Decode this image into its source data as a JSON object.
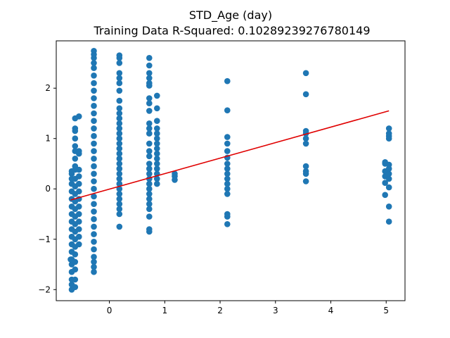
{
  "chart_data": {
    "type": "scatter",
    "title": "STD_Age (day)",
    "subtitle": "Training Data R-Squared: 0.10289239276780149",
    "xlabel": "",
    "ylabel": "",
    "xlim": [
      -0.96,
      5.34
    ],
    "ylim": [
      -2.22,
      2.94
    ],
    "xticks": [
      0,
      1,
      2,
      3,
      4,
      5
    ],
    "yticks": [
      -2,
      -1,
      0,
      1,
      2
    ],
    "grid": false,
    "colors": {
      "points": "#1f77b4",
      "fit_line": "#e00000"
    },
    "series": [
      {
        "kind": "points",
        "points": [
          [
            -0.68,
            -2.0
          ],
          [
            -0.68,
            -1.9
          ],
          [
            -0.68,
            -1.8
          ],
          [
            -0.68,
            -1.65
          ],
          [
            -0.68,
            -1.5
          ],
          [
            -0.68,
            -1.4
          ],
          [
            -0.68,
            -1.25
          ],
          [
            -0.68,
            -1.1
          ],
          [
            -0.68,
            -0.95
          ],
          [
            -0.68,
            -0.8
          ],
          [
            -0.68,
            -0.65
          ],
          [
            -0.68,
            -0.5
          ],
          [
            -0.68,
            -0.35
          ],
          [
            -0.68,
            -0.2
          ],
          [
            -0.68,
            -0.05
          ],
          [
            -0.68,
            0.1
          ],
          [
            -0.68,
            0.2
          ],
          [
            -0.68,
            0.3
          ],
          [
            -0.68,
            0.35
          ],
          [
            -0.7,
            -1.4
          ],
          [
            -0.62,
            -1.95
          ],
          [
            -0.62,
            -1.8
          ],
          [
            -0.62,
            -1.6
          ],
          [
            -0.62,
            -1.45
          ],
          [
            -0.62,
            -1.3
          ],
          [
            -0.62,
            -1.15
          ],
          [
            -0.62,
            -1.0
          ],
          [
            -0.62,
            -0.85
          ],
          [
            -0.62,
            -0.7
          ],
          [
            -0.62,
            -0.55
          ],
          [
            -0.62,
            -0.4
          ],
          [
            -0.62,
            -0.25
          ],
          [
            -0.62,
            -0.1
          ],
          [
            -0.62,
            0.05
          ],
          [
            -0.62,
            0.2
          ],
          [
            -0.62,
            0.38
          ],
          [
            -0.62,
            0.45
          ],
          [
            -0.62,
            0.6
          ],
          [
            -0.62,
            0.75
          ],
          [
            -0.62,
            0.85
          ],
          [
            -0.62,
            1.0
          ],
          [
            -0.62,
            1.15
          ],
          [
            -0.62,
            1.2
          ],
          [
            -0.62,
            1.4
          ],
          [
            -0.55,
            -1.1
          ],
          [
            -0.55,
            -0.95
          ],
          [
            -0.55,
            -0.8
          ],
          [
            -0.55,
            -0.65
          ],
          [
            -0.55,
            -0.5
          ],
          [
            -0.55,
            -0.35
          ],
          [
            -0.55,
            -0.2
          ],
          [
            -0.55,
            -0.05
          ],
          [
            -0.55,
            0.1
          ],
          [
            -0.55,
            0.25
          ],
          [
            -0.55,
            0.38
          ],
          [
            -0.55,
            0.7
          ],
          [
            -0.55,
            0.75
          ],
          [
            -0.55,
            1.44
          ],
          [
            -0.28,
            -1.65
          ],
          [
            -0.28,
            -1.55
          ],
          [
            -0.28,
            -1.45
          ],
          [
            -0.28,
            -1.35
          ],
          [
            -0.28,
            -1.2
          ],
          [
            -0.28,
            -1.05
          ],
          [
            -0.28,
            -0.9
          ],
          [
            -0.28,
            -0.75
          ],
          [
            -0.28,
            -0.6
          ],
          [
            -0.28,
            -0.45
          ],
          [
            -0.28,
            -0.3
          ],
          [
            -0.28,
            -0.15
          ],
          [
            -0.28,
            0.0
          ],
          [
            -0.28,
            0.15
          ],
          [
            -0.28,
            0.3
          ],
          [
            -0.28,
            0.45
          ],
          [
            -0.28,
            0.6
          ],
          [
            -0.28,
            0.75
          ],
          [
            -0.28,
            0.9
          ],
          [
            -0.28,
            1.05
          ],
          [
            -0.28,
            1.2
          ],
          [
            -0.28,
            1.35
          ],
          [
            -0.28,
            1.5
          ],
          [
            -0.28,
            1.65
          ],
          [
            -0.28,
            1.8
          ],
          [
            -0.28,
            1.95
          ],
          [
            -0.28,
            2.1
          ],
          [
            -0.28,
            2.25
          ],
          [
            -0.28,
            2.4
          ],
          [
            -0.28,
            2.5
          ],
          [
            -0.28,
            2.6
          ],
          [
            -0.28,
            2.67
          ],
          [
            -0.28,
            2.74
          ],
          [
            0.18,
            -0.75
          ],
          [
            0.18,
            -0.5
          ],
          [
            0.18,
            -0.4
          ],
          [
            0.18,
            -0.3
          ],
          [
            0.18,
            -0.2
          ],
          [
            0.18,
            -0.1
          ],
          [
            0.18,
            0.0
          ],
          [
            0.18,
            0.1
          ],
          [
            0.18,
            0.2
          ],
          [
            0.18,
            0.3
          ],
          [
            0.18,
            0.4
          ],
          [
            0.18,
            0.5
          ],
          [
            0.18,
            0.6
          ],
          [
            0.18,
            0.7
          ],
          [
            0.18,
            0.8
          ],
          [
            0.18,
            0.9
          ],
          [
            0.18,
            1.0
          ],
          [
            0.18,
            1.1
          ],
          [
            0.18,
            1.2
          ],
          [
            0.18,
            1.3
          ],
          [
            0.18,
            1.4
          ],
          [
            0.18,
            1.5
          ],
          [
            0.18,
            1.6
          ],
          [
            0.18,
            1.75
          ],
          [
            0.18,
            1.95
          ],
          [
            0.18,
            2.1
          ],
          [
            0.18,
            2.2
          ],
          [
            0.18,
            2.3
          ],
          [
            0.18,
            2.5
          ],
          [
            0.18,
            2.6
          ],
          [
            0.18,
            2.65
          ],
          [
            0.72,
            -0.85
          ],
          [
            0.72,
            -0.8
          ],
          [
            0.72,
            -0.55
          ],
          [
            0.72,
            -0.4
          ],
          [
            0.72,
            -0.3
          ],
          [
            0.72,
            -0.2
          ],
          [
            0.72,
            -0.1
          ],
          [
            0.72,
            0.0
          ],
          [
            0.72,
            0.1
          ],
          [
            0.72,
            0.2
          ],
          [
            0.72,
            0.3
          ],
          [
            0.72,
            0.4
          ],
          [
            0.72,
            0.5
          ],
          [
            0.72,
            0.65
          ],
          [
            0.72,
            0.75
          ],
          [
            0.72,
            0.9
          ],
          [
            0.72,
            1.1
          ],
          [
            0.72,
            1.2
          ],
          [
            0.72,
            1.3
          ],
          [
            0.72,
            1.55
          ],
          [
            0.72,
            1.7
          ],
          [
            0.72,
            1.8
          ],
          [
            0.72,
            2.05
          ],
          [
            0.72,
            2.1
          ],
          [
            0.72,
            2.2
          ],
          [
            0.72,
            2.3
          ],
          [
            0.72,
            2.45
          ],
          [
            0.72,
            2.6
          ],
          [
            0.86,
            0.1
          ],
          [
            0.86,
            0.2
          ],
          [
            0.86,
            0.3
          ],
          [
            0.86,
            0.4
          ],
          [
            0.86,
            0.5
          ],
          [
            0.86,
            0.6
          ],
          [
            0.86,
            0.7
          ],
          [
            0.86,
            0.8
          ],
          [
            0.86,
            0.9
          ],
          [
            0.86,
            1.0
          ],
          [
            0.86,
            1.1
          ],
          [
            0.86,
            1.2
          ],
          [
            0.86,
            1.35
          ],
          [
            0.86,
            1.6
          ],
          [
            0.86,
            1.85
          ],
          [
            1.18,
            0.18
          ],
          [
            1.18,
            0.25
          ],
          [
            1.18,
            0.3
          ],
          [
            2.13,
            -0.7
          ],
          [
            2.13,
            -0.55
          ],
          [
            2.13,
            -0.5
          ],
          [
            2.13,
            -0.1
          ],
          [
            2.13,
            0.0
          ],
          [
            2.13,
            0.1
          ],
          [
            2.13,
            0.2
          ],
          [
            2.13,
            0.3
          ],
          [
            2.13,
            0.4
          ],
          [
            2.13,
            0.5
          ],
          [
            2.13,
            0.62
          ],
          [
            2.13,
            0.75
          ],
          [
            2.13,
            0.9
          ],
          [
            2.13,
            1.03
          ],
          [
            2.13,
            1.56
          ],
          [
            2.13,
            2.14
          ],
          [
            3.55,
            0.15
          ],
          [
            3.55,
            0.3
          ],
          [
            3.55,
            0.35
          ],
          [
            3.55,
            0.45
          ],
          [
            3.55,
            0.9
          ],
          [
            3.55,
            1.0
          ],
          [
            3.55,
            1.1
          ],
          [
            3.55,
            1.15
          ],
          [
            3.55,
            1.88
          ],
          [
            3.55,
            2.3
          ],
          [
            4.98,
            -0.12
          ],
          [
            4.98,
            0.12
          ],
          [
            4.98,
            0.25
          ],
          [
            4.98,
            0.35
          ],
          [
            4.98,
            0.5
          ],
          [
            4.98,
            0.53
          ],
          [
            5.05,
            -0.65
          ],
          [
            5.05,
            -0.35
          ],
          [
            5.05,
            0.03
          ],
          [
            5.05,
            0.2
          ],
          [
            5.05,
            0.3
          ],
          [
            5.05,
            0.4
          ],
          [
            5.05,
            0.48
          ],
          [
            5.05,
            1.0
          ],
          [
            5.05,
            1.05
          ],
          [
            5.05,
            1.1
          ],
          [
            5.05,
            1.2
          ]
        ]
      },
      {
        "kind": "line",
        "points": [
          [
            -0.7,
            -0.22
          ],
          [
            5.05,
            1.55
          ]
        ]
      }
    ]
  }
}
